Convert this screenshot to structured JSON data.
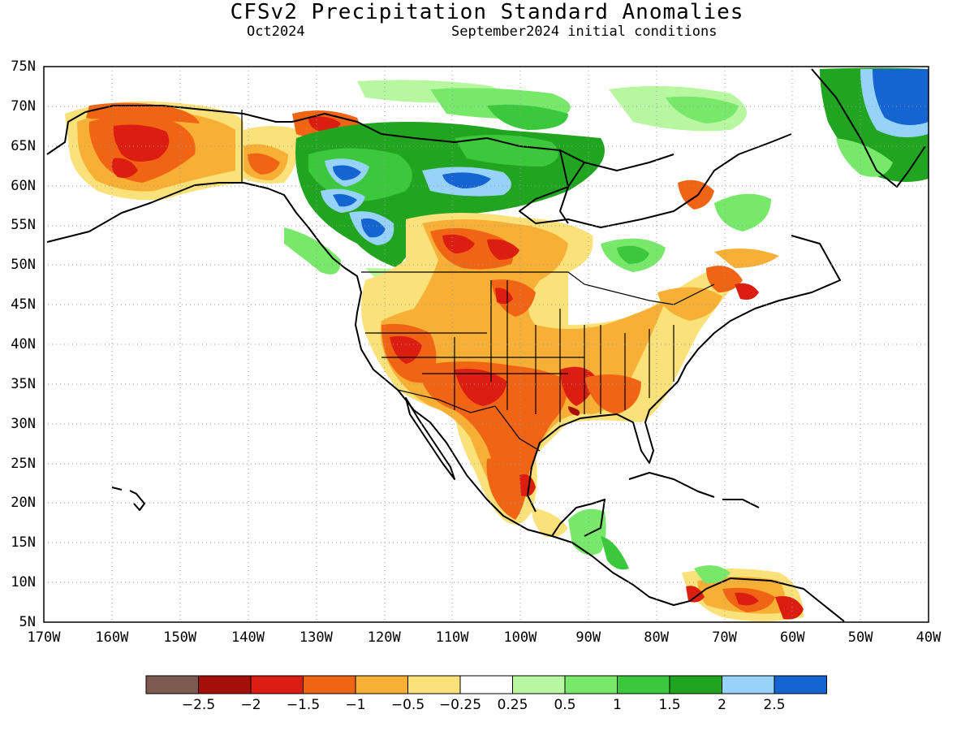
{
  "header": {
    "title": "CFSv2 Precipitation Standard Anomalies",
    "month": "Oct2024",
    "initial_conditions": "September2024 initial conditions"
  },
  "axes": {
    "lat_labels": [
      "75N",
      "70N",
      "65N",
      "60N",
      "55N",
      "50N",
      "45N",
      "40N",
      "35N",
      "30N",
      "25N",
      "20N",
      "15N",
      "10N",
      "5N"
    ],
    "lon_labels": [
      "170W",
      "160W",
      "150W",
      "140W",
      "130W",
      "120W",
      "110W",
      "100W",
      "90W",
      "80W",
      "70W",
      "60W",
      "50W",
      "40W"
    ],
    "lat_range": [
      5,
      75
    ],
    "lon_range": [
      -170,
      -40
    ],
    "grid": "dotted"
  },
  "legend": {
    "labels": [
      "−2.5",
      "−2",
      "−1.5",
      "−1",
      "−0.5",
      "−0.25",
      "0.25",
      "0.5",
      "1",
      "1.5",
      "2",
      "2.5"
    ],
    "colors": [
      "#7d5a50",
      "#a50f0a",
      "#dc1e12",
      "#f06414",
      "#f7b035",
      "#fbe17a",
      "#ffffff",
      "#b7f7a0",
      "#78e86a",
      "#3cc83c",
      "#21a521",
      "#96d2fa",
      "#1464d2"
    ]
  },
  "map": {
    "region": "North America",
    "variable": "precipitation standard anomaly",
    "colors": {
      "dry_strong": "#dc1e12",
      "dry_moderate": "#f06414",
      "dry_weak": "#f7b035",
      "dry_slight": "#fbe17a",
      "wet_slight": "#b7f7a0",
      "wet_weak": "#78e86a",
      "wet_moderate": "#3cc83c",
      "wet_strong": "#21a521",
      "wet_very": "#96d2fa",
      "wet_extreme": "#1464d2",
      "coast": "#000000"
    }
  }
}
